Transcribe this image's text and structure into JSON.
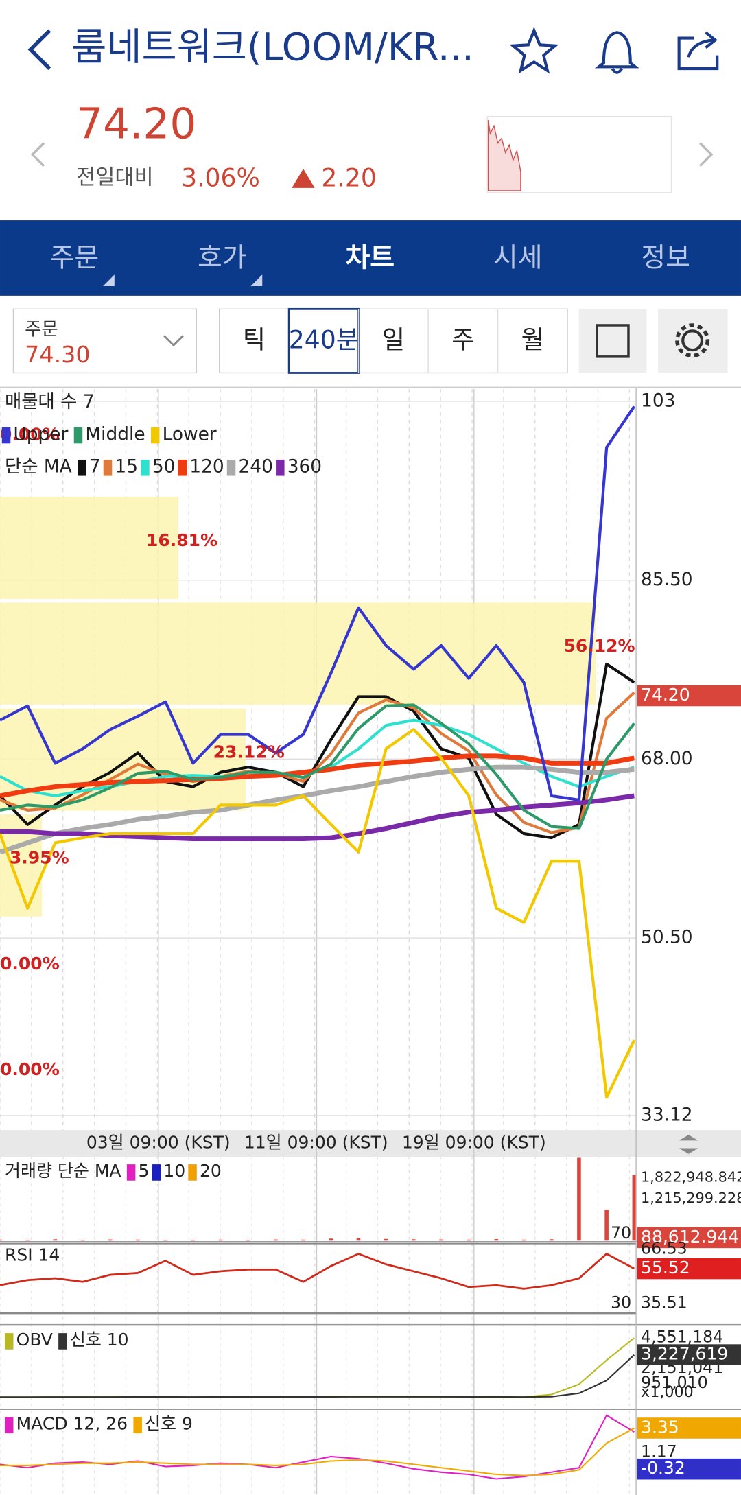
{
  "header": {
    "title": "룸네트워크(LOOM/KR...",
    "price": "74.20",
    "change_label": "전일대비",
    "change_pct": "3.06%",
    "change_abs": "2.20"
  },
  "tabs": [
    "주문",
    "호가",
    "차트",
    "시세",
    "정보"
  ],
  "order_box": {
    "label": "주문",
    "price": "74.30"
  },
  "periods": [
    "틱",
    "240분",
    "일",
    "주",
    "월"
  ],
  "main_chart": {
    "type": "line",
    "volume_profile_label": "매물대 수 7",
    "ylim": [
      31.7,
      104.2
    ],
    "yticks": [
      103,
      {
        "value": 85.5,
        "label": "85.50"
      },
      {
        "value": 68,
        "label": "68.00"
      },
      {
        "value": 50.5,
        "label": "50.50"
      },
      33.12
    ],
    "last_price": {
      "value": 74.2,
      "label": "74.20"
    },
    "x_labels": [
      "03일 09:00 (KST)",
      "11일 09:00 (KST)",
      "19일 09:00 (KST)"
    ],
    "volume_profile": {
      "color": "#fbf5b0",
      "values": [
        0,
        16.81,
        56.12,
        23.12,
        3.95,
        0,
        0
      ],
      "value_labels": [
        "0.00%",
        "16.81%",
        "56.12%",
        "23.12%",
        "3.95%",
        "0.00%",
        "0.00%"
      ]
    },
    "bollinger": {
      "series": [
        {
          "name": "Upper",
          "color": "#3636d0",
          "values": [
            71.8,
            73.2,
            67.6,
            69.0,
            70.9,
            72.2,
            73.6,
            67.6,
            70.4,
            70.4,
            68.6,
            70.4,
            76.4,
            82.8,
            79.1,
            76.8,
            79.1,
            75.9,
            79.1,
            75.5,
            64.4,
            64.0,
            98.5,
            102.5
          ]
        },
        {
          "name": "Middle",
          "color": "#2e9a6a",
          "values": [
            63.0,
            63.5,
            63.3,
            64.0,
            65.2,
            66.6,
            66.8,
            66.0,
            66.2,
            66.7,
            66.7,
            66.2,
            67.5,
            71.0,
            73.2,
            73.3,
            71.5,
            69.5,
            66.5,
            63.0,
            61.4,
            61.2,
            68.0,
            71.5
          ]
        },
        {
          "name": "Lower",
          "color": "#f2c800",
          "values": [
            60.7,
            53.4,
            59.8,
            60.3,
            60.7,
            60.7,
            60.7,
            60.7,
            63.5,
            63.5,
            63.5,
            64.4,
            61.6,
            58.9,
            69.0,
            70.9,
            68.1,
            64.4,
            53.4,
            52.0,
            58.0,
            58.0,
            34.9,
            40.5
          ]
        }
      ]
    },
    "ma": {
      "label": "단순 MA",
      "series": [
        {
          "name": "7",
          "color": "#111111",
          "values": [
            64.4,
            61.6,
            63.5,
            65.3,
            66.7,
            68.6,
            65.8,
            65.3,
            66.7,
            67.2,
            66.7,
            65.3,
            69.9,
            74.1,
            74.1,
            72.7,
            69.0,
            68.1,
            62.6,
            60.7,
            60.3,
            61.6,
            77.3,
            75.5
          ]
        },
        {
          "name": "15",
          "color": "#e07a3a",
          "values": [
            64.0,
            63.0,
            63.2,
            64.5,
            66.0,
            67.5,
            66.5,
            65.8,
            66.3,
            66.8,
            66.6,
            65.8,
            68.5,
            72.5,
            73.8,
            73.0,
            70.5,
            68.8,
            64.5,
            61.8,
            60.8,
            61.3,
            72.0,
            74.5
          ]
        },
        {
          "name": "50",
          "color": "#2ee0d0",
          "values": [
            66.3,
            64.9,
            64.4,
            64.9,
            65.3,
            65.8,
            66.3,
            66.4,
            66.3,
            66.3,
            66.4,
            66.7,
            67.2,
            69.0,
            71.3,
            71.8,
            71.3,
            70.4,
            69.0,
            67.6,
            66.3,
            65.3,
            66.3,
            67.2
          ]
        },
        {
          "name": "120",
          "color": "#f03c10",
          "values": [
            64.4,
            64.9,
            65.3,
            65.5,
            65.7,
            65.8,
            65.9,
            66.0,
            66.1,
            66.3,
            66.4,
            66.7,
            67.0,
            67.4,
            67.6,
            67.8,
            68.1,
            68.3,
            68.3,
            68.1,
            67.6,
            67.6,
            67.6,
            68.1
          ]
        },
        {
          "name": "240",
          "color": "#aaaaaa",
          "values": [
            58.9,
            59.8,
            60.7,
            61.2,
            61.6,
            62.1,
            62.4,
            62.8,
            63.0,
            63.5,
            64.0,
            64.4,
            64.9,
            65.3,
            65.8,
            66.3,
            66.7,
            67.0,
            67.2,
            67.2,
            67.0,
            66.7,
            66.7,
            67.0
          ]
        },
        {
          "name": "360",
          "color": "#7a2aa8",
          "values": [
            60.9,
            60.9,
            60.7,
            60.7,
            60.5,
            60.4,
            60.3,
            60.2,
            60.2,
            60.2,
            60.2,
            60.2,
            60.3,
            60.7,
            61.2,
            61.8,
            62.4,
            62.8,
            63.0,
            63.3,
            63.5,
            63.7,
            64.0,
            64.4
          ]
        }
      ]
    }
  },
  "volume_panel": {
    "label": "거래량 단순 MA",
    "legend": [
      {
        "name": "5",
        "color": "#e020c0"
      },
      {
        "name": "10",
        "color": "#1a20c0"
      },
      {
        "name": "20",
        "color": "#f0a000"
      }
    ],
    "color": "#d9453a",
    "ylim": [
      0,
      2430000
    ],
    "yticks": [
      {
        "value": 1822948.842,
        "label": "1,822,948.842"
      },
      {
        "value": 1215299.228,
        "label": "1,215,299.228"
      }
    ],
    "last": {
      "value": 88612.944,
      "label": "88,612.944"
    },
    "values": [
      30000,
      25000,
      40000,
      20000,
      35000,
      30000,
      25000,
      20000,
      30000,
      25000,
      35000,
      30000,
      60000,
      70000,
      50000,
      40000,
      35000,
      30000,
      45000,
      30000,
      40000,
      2400000,
      900000,
      1900000
    ]
  },
  "rsi_panel": {
    "label": "RSI 14",
    "color": "#d02a1a",
    "ylim": [
      24,
      71
    ],
    "yticks": [
      70,
      30
    ],
    "side_labels": [
      {
        "value": 66.53,
        "label": "66.53"
      },
      {
        "value": 35.51,
        "label": "35.51"
      }
    ],
    "last": {
      "value": 55.52,
      "label": "55.52"
    },
    "values": [
      46,
      49,
      50,
      48,
      52,
      53,
      60,
      52,
      54,
      55,
      55,
      48,
      57,
      64,
      58,
      54,
      50,
      45,
      46,
      44,
      46,
      50,
      64,
      55.52
    ]
  },
  "obv_panel": {
    "ylim": [
      -930000,
      5530000
    ],
    "unit_label": "x1,000",
    "series": [
      {
        "name": "OBV",
        "color": "#b8b820",
        "values": [
          -100000,
          -100000,
          -90000,
          -95000,
          -90000,
          -85000,
          -90000,
          -95000,
          -90000,
          -85000,
          -90000,
          -95000,
          -80000,
          -70000,
          -75000,
          -80000,
          -90000,
          -95000,
          -100000,
          -100000,
          100000,
          900000,
          2800000,
          4551184
        ]
      },
      {
        "name": "신호 10",
        "color": "#333333",
        "values": [
          -100000,
          -100000,
          -98000,
          -97000,
          -95000,
          -92000,
          -92000,
          -93000,
          -92000,
          -90000,
          -90000,
          -91000,
          -88000,
          -82000,
          -79000,
          -79000,
          -82000,
          -86000,
          -90000,
          -95000,
          -70000,
          200000,
          1200000,
          3227619
        ]
      }
    ],
    "yticks": [
      {
        "value": 4551184,
        "label": "4,551,184"
      },
      {
        "value": 2151041,
        "label": "2,151,041"
      },
      {
        "value": 951010,
        "label": "951,010"
      }
    ],
    "last": {
      "value": 3227619,
      "label": "3,227,619"
    }
  },
  "macd_panel": {
    "ylim": [
      -2.5,
      4.85
    ],
    "series": [
      {
        "name": "MACD 12, 26",
        "color": "#e020c0",
        "values": [
          0.1,
          -0.2,
          0.2,
          0.3,
          0.1,
          0.4,
          -0.1,
          0.0,
          0.2,
          0.1,
          -0.2,
          0.3,
          0.8,
          0.6,
          0.2,
          -0.3,
          -0.6,
          -0.8,
          -1.2,
          -1.0,
          -0.6,
          -0.2,
          4.5,
          3.0
        ]
      },
      {
        "name": "신호 9",
        "color": "#f0a800",
        "values": [
          0,
          0,
          0.1,
          0.2,
          0.2,
          0.3,
          0.2,
          0.1,
          0.1,
          0.1,
          0.0,
          0.1,
          0.4,
          0.5,
          0.4,
          0.1,
          -0.2,
          -0.5,
          -0.8,
          -0.9,
          -0.8,
          -0.4,
          2.0,
          3.35
        ]
      }
    ],
    "yticks": [
      1.17
    ],
    "boxes": [
      {
        "value": 3.35,
        "label": "3.35",
        "color": "#f0a800"
      },
      {
        "value": -0.32,
        "label": "-0.32",
        "color": "#3030c8"
      }
    ]
  }
}
